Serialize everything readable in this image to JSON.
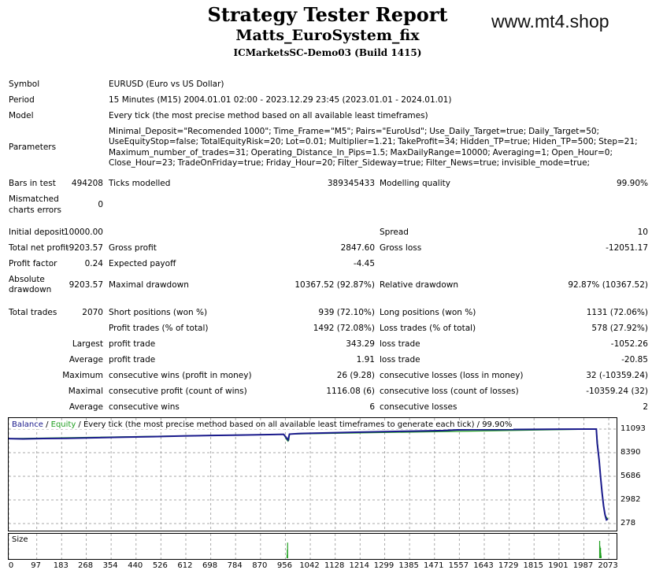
{
  "header": {
    "title": "Strategy Tester Report",
    "ea_name": "Matts_EuroSystem_fix",
    "server": "ICMarketsSC-Demo03 (Build 1415)",
    "watermark": "www.mt4.shop"
  },
  "info": {
    "symbol_label": "Symbol",
    "symbol_value": "EURUSD (Euro vs US Dollar)",
    "period_label": "Period",
    "period_value": "15 Minutes (M15) 2004.01.01 02:00 - 2023.12.29 23:45 (2023.01.01 - 2024.01.01)",
    "model_label": "Model",
    "model_value": "Every tick (the most precise method based on all available least timeframes)",
    "parameters_label": "Parameters",
    "parameters_value": "Minimal_Deposit=\"Recomended 1000\"; Time_Frame=\"M5\"; Pairs=\"EuroUsd\"; Use_Daily_Target=true; Daily_Target=50; UseEquityStop=false; TotalEquityRisk=20; Lot=0.01; Multiplier=1.21; TakeProfit=34; Hidden_TP=true; Hiden_TP=500; Step=21; Maximum_number_of_trades=31; Operating_Distance_In_Pips=1.5; MaxDailyRange=10000; Averaging=1; Open_Hour=0; Close_Hour=23; TradeOnFriday=true; Friday_Hour=20; Filter_Sideway=true; Filter_News=true; invisible_mode=true;"
  },
  "stats": {
    "bars_label": "Bars in test",
    "bars_value": "494208",
    "ticks_label": "Ticks modelled",
    "ticks_value": "389345433",
    "quality_label": "Modelling quality",
    "quality_value": "99.90%",
    "mismatch_label_1": "Mismatched",
    "mismatch_label_2": "charts errors",
    "mismatch_value": "0",
    "deposit_label": "Initial deposit",
    "deposit_value": "10000.00",
    "spread_label": "Spread",
    "spread_value": "10",
    "netprofit_label": "Total net profit",
    "netprofit_value": "-9203.57",
    "grossprofit_label": "Gross profit",
    "grossprofit_value": "2847.60",
    "grossloss_label": "Gross loss",
    "grossloss_value": "-12051.17",
    "pf_label": "Profit factor",
    "pf_value": "0.24",
    "payoff_label": "Expected payoff",
    "payoff_value": "-4.45",
    "absdd_label_1": "Absolute",
    "absdd_label_2": "drawdown",
    "absdd_value": "9203.57",
    "maxdd_label": "Maximal drawdown",
    "maxdd_value": "10367.52 (92.87%)",
    "reldd_label": "Relative drawdown",
    "reldd_value": "92.87% (10367.52)",
    "trades_label": "Total trades",
    "trades_value": "2070",
    "short_label": "Short positions (won %)",
    "short_value": "939 (72.10%)",
    "long_label": "Long positions (won %)",
    "long_value": "1131 (72.06%)",
    "ptrades_label": "Profit trades (% of total)",
    "ptrades_value": "1492 (72.08%)",
    "ltrades_label": "Loss trades (% of total)",
    "ltrades_value": "578 (27.92%)",
    "largest_label": "Largest",
    "largest_pt_label": "profit trade",
    "largest_pt_value": "343.29",
    "largest_lt_label": "loss trade",
    "largest_lt_value": "-1052.26",
    "average_label": "Average",
    "average_pt_label": "profit trade",
    "average_pt_value": "1.91",
    "average_lt_label": "loss trade",
    "average_lt_value": "-20.85",
    "maximum_label": "Maximum",
    "max_cw_label": "consecutive wins (profit in money)",
    "max_cw_value": "26 (9.28)",
    "max_cl_label": "consecutive losses (loss in money)",
    "max_cl_value": "32 (-10359.24)",
    "maximal_label": "Maximal",
    "maximal_cp_label": "consecutive profit (count of wins)",
    "maximal_cp_value": "1116.08 (6)",
    "maximal_cl_label": "consecutive loss (count of losses)",
    "maximal_cl_value": "-10359.24 (32)",
    "avg2_label": "Average",
    "avg_cw_label": "consecutive wins",
    "avg_cw_value": "6",
    "avg_cl_label": "consecutive losses",
    "avg_cl_value": "2"
  },
  "chart": {
    "legend_balance": "Balance",
    "legend_sep1": " / ",
    "legend_equity": "Equity",
    "legend_rest": " / Every tick (the most precise method based on all available least timeframes to generate each tick) / 99.90%",
    "size_label": "Size",
    "colors": {
      "balance": "#1a1a8c",
      "equity": "#1f9e1f",
      "grid": "#aaaaaa"
    }
  },
  "chart_data": {
    "type": "line",
    "title": "",
    "xlabel": "",
    "ylabel": "",
    "y_ticks": [
      11093,
      8390,
      5686,
      2982,
      278
    ],
    "x_ticks": [
      0,
      97,
      183,
      268,
      354,
      440,
      526,
      612,
      698,
      784,
      870,
      956,
      1042,
      1128,
      1214,
      1299,
      1385,
      1471,
      1557,
      1643,
      1729,
      1815,
      1901,
      1987,
      2073
    ],
    "xlim": [
      0,
      2100
    ],
    "ylim": [
      278,
      11093
    ],
    "series": [
      {
        "name": "Balance",
        "x": [
          0,
          50,
          120,
          200,
          300,
          400,
          500,
          600,
          700,
          800,
          900,
          950,
          965,
          970,
          1000,
          1100,
          1200,
          1300,
          1400,
          1500,
          1550,
          1600,
          1700,
          1800,
          1900,
          2000,
          2030,
          2033,
          2040,
          2045,
          2050,
          2055,
          2060,
          2065,
          2070
        ],
        "y": [
          10000,
          9970,
          10010,
          10040,
          10100,
          10170,
          10230,
          10300,
          10360,
          10410,
          10460,
          10500,
          9850,
          10520,
          10580,
          10650,
          10730,
          10800,
          10860,
          10920,
          11000,
          11020,
          11040,
          11060,
          11080,
          11093,
          11090,
          9500,
          7500,
          5500,
          3800,
          2300,
          1300,
          700,
          796
        ]
      },
      {
        "name": "Equity",
        "x": [
          0,
          950,
          960,
          965,
          968,
          970,
          2030,
          2040,
          2050,
          2060,
          2070
        ],
        "y": [
          10000,
          10500,
          9900,
          9700,
          9850,
          10520,
          11090,
          7400,
          3700,
          1200,
          796
        ]
      }
    ]
  },
  "size_data": {
    "x": [
      960,
      961,
      962,
      2040,
      2041,
      2042,
      2043,
      2044,
      2045
    ],
    "h": [
      0.2,
      0.5,
      0.9,
      1.0,
      0.7,
      0.4,
      0.6,
      0.3,
      0.15
    ]
  }
}
